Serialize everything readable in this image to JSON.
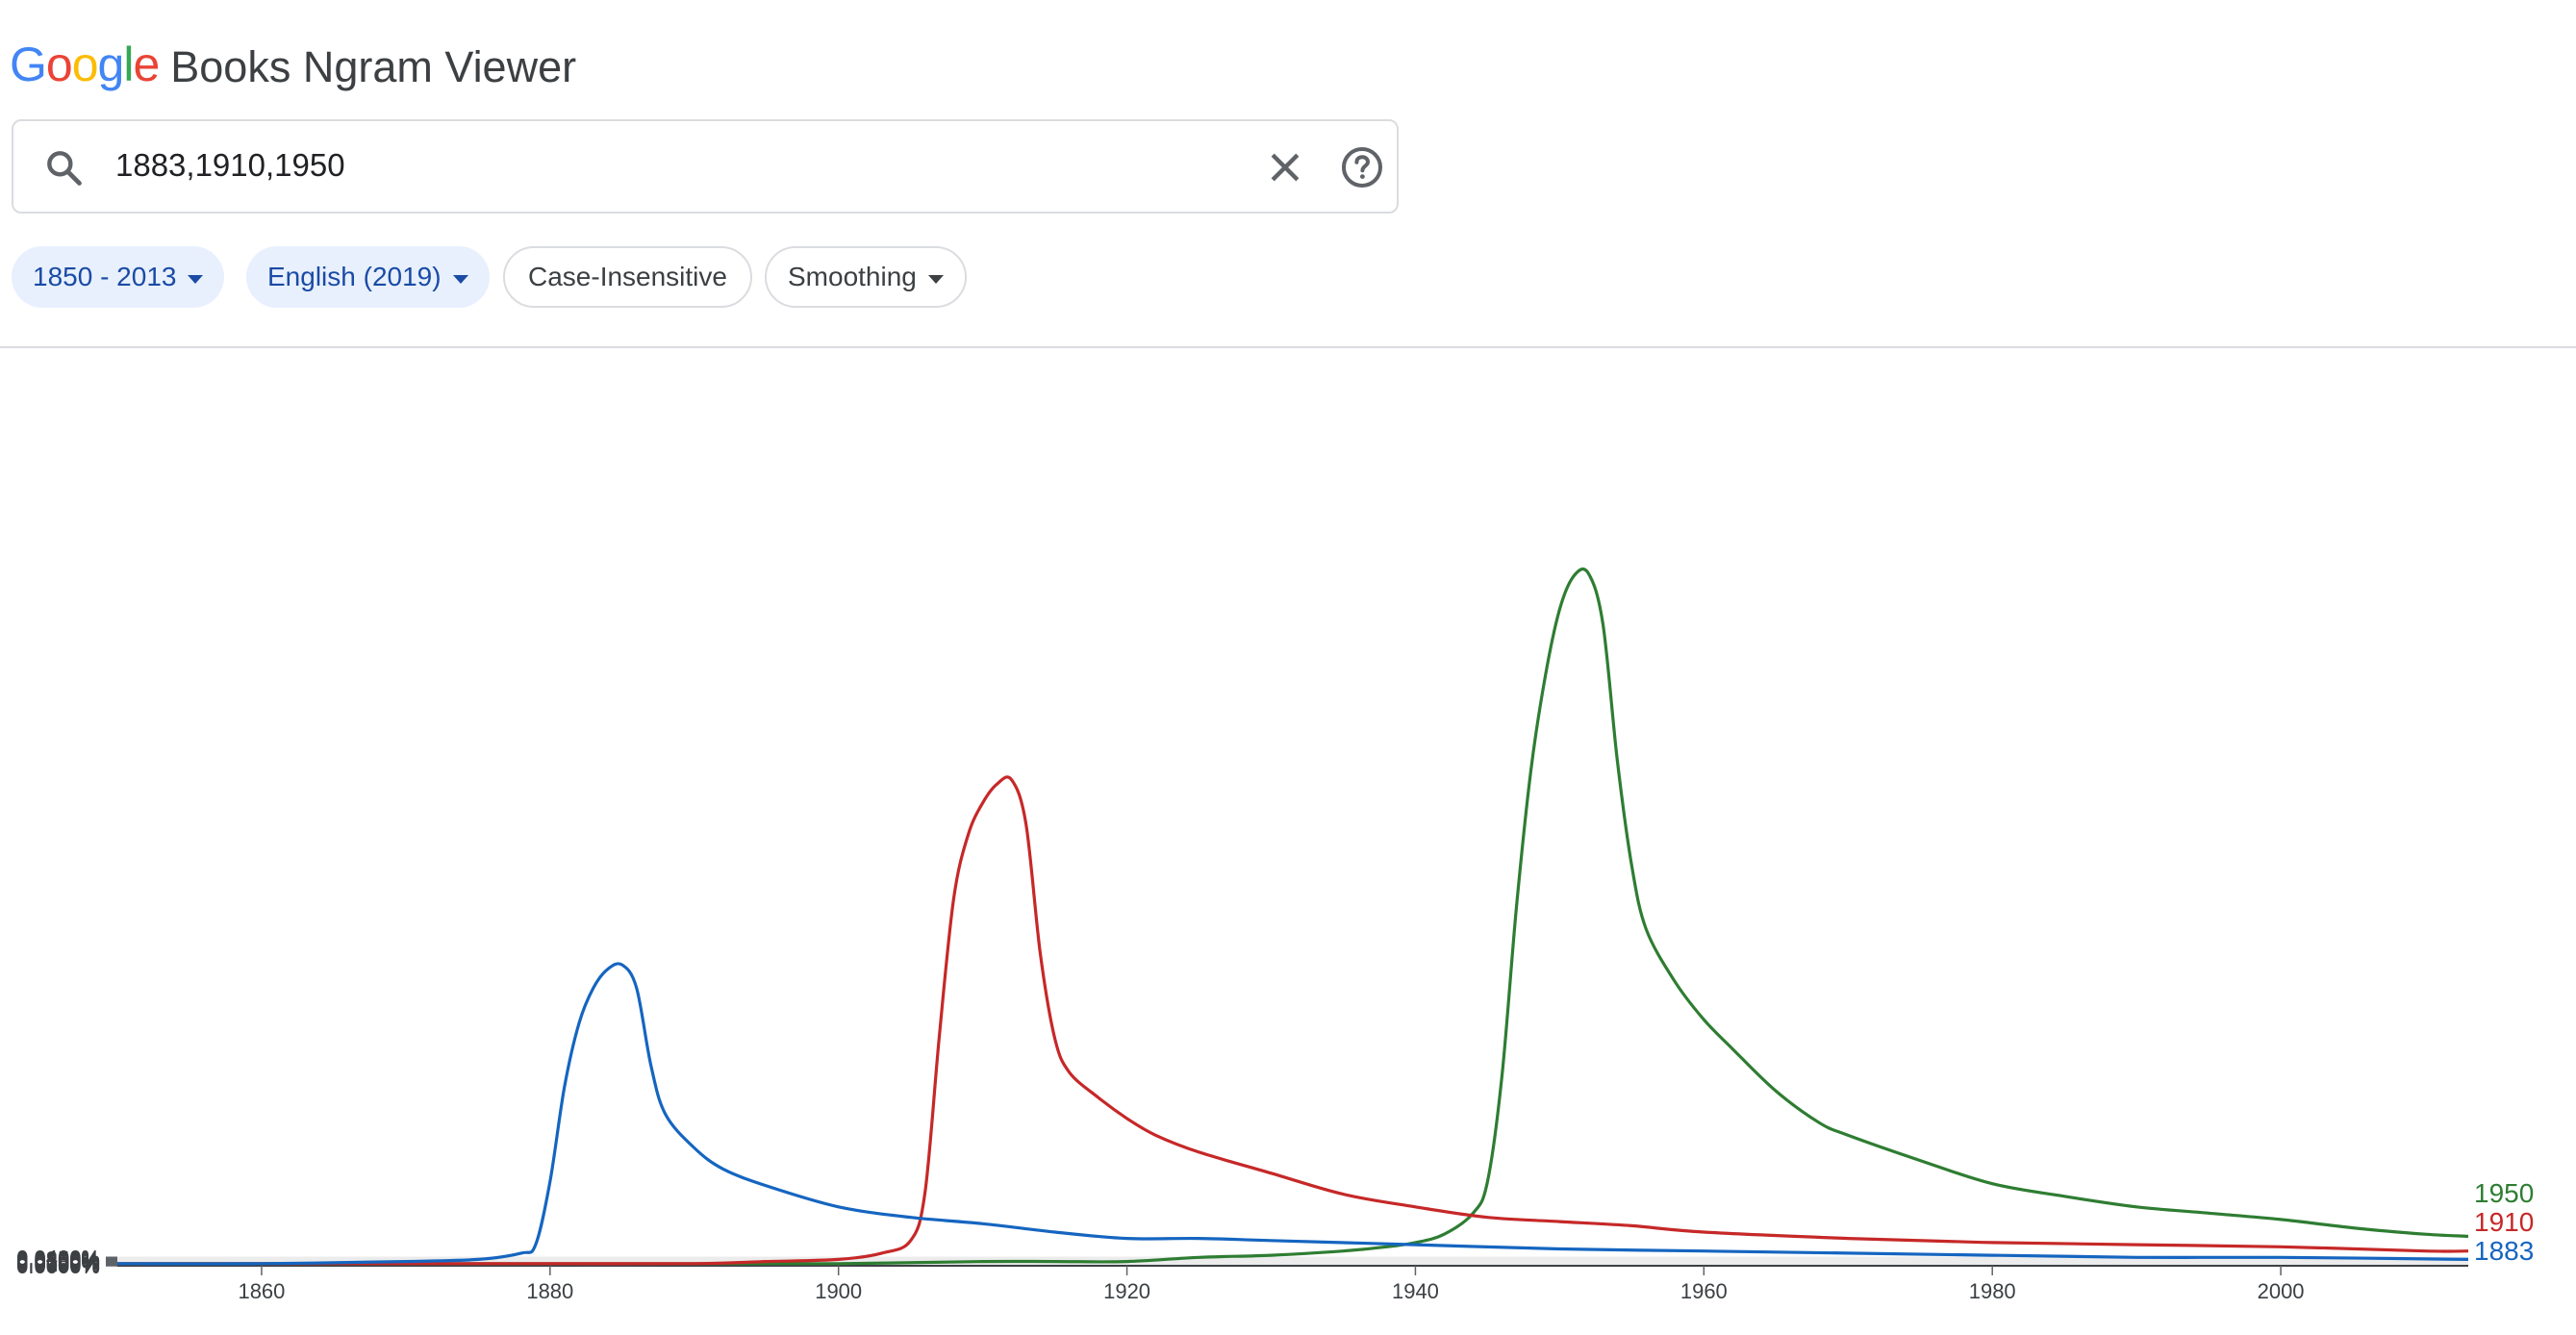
{
  "header": {
    "logo_letters": [
      {
        "ch": "G",
        "color": "#4285F4"
      },
      {
        "ch": "o",
        "color": "#EA4335"
      },
      {
        "ch": "o",
        "color": "#FBBC05"
      },
      {
        "ch": "g",
        "color": "#4285F4"
      },
      {
        "ch": "l",
        "color": "#34A853"
      },
      {
        "ch": "e",
        "color": "#EA4335"
      }
    ],
    "app_name": "Books Ngram Viewer"
  },
  "search": {
    "icon": "search-icon",
    "query": "1883,1910,1950",
    "clear_icon": "close-icon",
    "help_icon": "help-icon"
  },
  "filters": {
    "year_range": "1850 - 2013",
    "corpus": "English (2019)",
    "case": "Case-Insensitive",
    "smoothing": "Smoothing"
  },
  "chart_data": {
    "type": "line",
    "xlim": [
      1850,
      2013
    ],
    "ylim": [
      0,
      0.04
    ],
    "y_unit": "%",
    "x_ticks": [
      "1860",
      "1880",
      "1900",
      "1920",
      "1940",
      "1960",
      "1980",
      "2000"
    ],
    "y_ticks": [
      "0.0000%",
      "0.0050%",
      "0.0100%",
      "0.0150%",
      "0.0200%",
      "0.0250%",
      "0.0300%",
      "0.0350%",
      "0.0400%"
    ],
    "grid": true,
    "legend_placement": "right-end labels",
    "series": [
      {
        "name": "1950",
        "color": "#2e7d32",
        "points": [
          [
            1850,
            0.0001
          ],
          [
            1860,
            0.0001
          ],
          [
            1870,
            0.0001
          ],
          [
            1880,
            0.0001
          ],
          [
            1890,
            0.0001
          ],
          [
            1900,
            0.0001
          ],
          [
            1910,
            0.0002
          ],
          [
            1915,
            0.0002
          ],
          [
            1920,
            0.0002
          ],
          [
            1925,
            0.0004
          ],
          [
            1930,
            0.0005
          ],
          [
            1935,
            0.0007
          ],
          [
            1938,
            0.0009
          ],
          [
            1940,
            0.0011
          ],
          [
            1942,
            0.0015
          ],
          [
            1944,
            0.0025
          ],
          [
            1945,
            0.004
          ],
          [
            1946,
            0.009
          ],
          [
            1947,
            0.017
          ],
          [
            1948,
            0.0235
          ],
          [
            1949,
            0.028
          ],
          [
            1950,
            0.0312
          ],
          [
            1951,
            0.0328
          ],
          [
            1952,
            0.0329
          ],
          [
            1953,
            0.0305
          ],
          [
            1954,
            0.024
          ],
          [
            1955,
            0.019
          ],
          [
            1956,
            0.016
          ],
          [
            1958,
            0.0135
          ],
          [
            1960,
            0.0117
          ],
          [
            1962,
            0.0103
          ],
          [
            1965,
            0.0083
          ],
          [
            1968,
            0.0068
          ],
          [
            1970,
            0.0062
          ],
          [
            1975,
            0.005
          ],
          [
            1980,
            0.0039
          ],
          [
            1985,
            0.0033
          ],
          [
            1990,
            0.0028
          ],
          [
            1995,
            0.0025
          ],
          [
            2000,
            0.0022
          ],
          [
            2005,
            0.0018
          ],
          [
            2010,
            0.0015
          ],
          [
            2013,
            0.0014
          ]
        ]
      },
      {
        "name": "1910",
        "color": "#c62828",
        "points": [
          [
            1850,
            0.0001
          ],
          [
            1870,
            0.0001
          ],
          [
            1880,
            0.0001
          ],
          [
            1890,
            0.0001
          ],
          [
            1895,
            0.0002
          ],
          [
            1900,
            0.0003
          ],
          [
            1903,
            0.0006
          ],
          [
            1905,
            0.0012
          ],
          [
            1906,
            0.0035
          ],
          [
            1907,
            0.011
          ],
          [
            1908,
            0.0175
          ],
          [
            1909,
            0.0205
          ],
          [
            1910,
            0.022
          ],
          [
            1911,
            0.0229
          ],
          [
            1912,
            0.0231
          ],
          [
            1913,
            0.021
          ],
          [
            1914,
            0.0148
          ],
          [
            1915,
            0.0108
          ],
          [
            1916,
            0.0092
          ],
          [
            1918,
            0.008
          ],
          [
            1920,
            0.007
          ],
          [
            1922,
            0.0062
          ],
          [
            1925,
            0.0054
          ],
          [
            1930,
            0.0044
          ],
          [
            1935,
            0.0034
          ],
          [
            1940,
            0.0028
          ],
          [
            1945,
            0.0023
          ],
          [
            1950,
            0.0021
          ],
          [
            1955,
            0.0019
          ],
          [
            1960,
            0.0016
          ],
          [
            1970,
            0.0013
          ],
          [
            1980,
            0.0011
          ],
          [
            1990,
            0.001
          ],
          [
            2000,
            0.0009
          ],
          [
            2010,
            0.0007
          ],
          [
            2013,
            0.0007
          ]
        ]
      },
      {
        "name": "1883",
        "color": "#1565c0",
        "points": [
          [
            1850,
            0.0001
          ],
          [
            1860,
            0.0001
          ],
          [
            1870,
            0.0002
          ],
          [
            1875,
            0.0003
          ],
          [
            1878,
            0.0006
          ],
          [
            1879,
            0.001
          ],
          [
            1880,
            0.004
          ],
          [
            1881,
            0.0085
          ],
          [
            1882,
            0.0115
          ],
          [
            1883,
            0.0132
          ],
          [
            1884,
            0.0141
          ],
          [
            1885,
            0.0143
          ],
          [
            1886,
            0.0132
          ],
          [
            1887,
            0.0095
          ],
          [
            1888,
            0.0072
          ],
          [
            1890,
            0.0056
          ],
          [
            1892,
            0.0046
          ],
          [
            1895,
            0.0038
          ],
          [
            1900,
            0.0028
          ],
          [
            1905,
            0.0023
          ],
          [
            1910,
            0.002
          ],
          [
            1915,
            0.0016
          ],
          [
            1920,
            0.0013
          ],
          [
            1925,
            0.0013
          ],
          [
            1930,
            0.0012
          ],
          [
            1940,
            0.001
          ],
          [
            1950,
            0.0008
          ],
          [
            1960,
            0.0007
          ],
          [
            1970,
            0.0006
          ],
          [
            1980,
            0.0005
          ],
          [
            1990,
            0.0004
          ],
          [
            2000,
            0.0004
          ],
          [
            2013,
            0.0003
          ]
        ]
      }
    ]
  }
}
